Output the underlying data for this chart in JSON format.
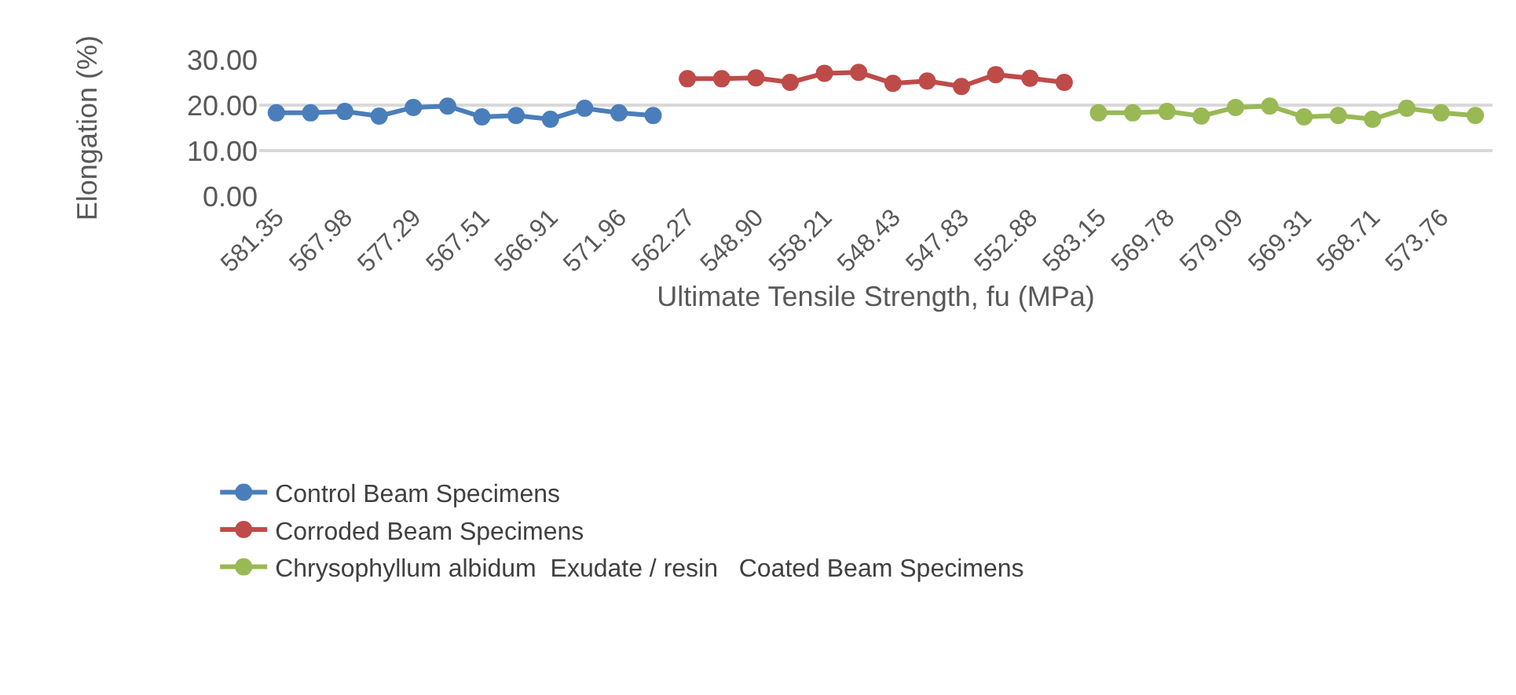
{
  "chart_data": {
    "type": "line",
    "xlabel": "Ultimate Tensile Strength, fu (MPa)",
    "ylabel": "Elongation (%)",
    "categories": [
      "581.35",
      null,
      "567.98",
      null,
      "577.29",
      null,
      "567.51",
      null,
      "566.91",
      null,
      "571.96",
      null,
      "562.27",
      null,
      "548.90",
      null,
      "558.21",
      null,
      "548.43",
      null,
      "547.83",
      null,
      "552.88",
      null,
      "583.15",
      null,
      "569.78",
      null,
      "579.09",
      null,
      "569.31",
      null,
      "568.71",
      null,
      "573.76",
      null
    ],
    "series": [
      {
        "name": "Control Beam Specimens",
        "color": "#4a7ebb",
        "values": [
          18.3,
          18.3,
          18.6,
          17.6,
          19.5,
          19.8,
          17.4,
          17.7,
          16.9,
          19.3,
          18.3,
          17.7,
          null,
          null,
          null,
          null,
          null,
          null,
          null,
          null,
          null,
          null,
          null,
          null,
          null,
          null,
          null,
          null,
          null,
          null,
          null,
          null,
          null,
          null,
          null,
          null
        ]
      },
      {
        "name": "Corroded Beam Specimens",
        "color": "#be4b48",
        "values": [
          null,
          null,
          null,
          null,
          null,
          null,
          null,
          null,
          null,
          null,
          null,
          null,
          25.8,
          25.8,
          26.0,
          25.0,
          27.0,
          27.2,
          24.8,
          25.3,
          24.1,
          26.7,
          25.9,
          25.0,
          null,
          null,
          null,
          null,
          null,
          null,
          null,
          null,
          null,
          null,
          null,
          null
        ]
      },
      {
        "name": "Chrysophyllum albidum  Exudate / resin   Coated Beam Specimens",
        "color": "#98b954",
        "values": [
          null,
          null,
          null,
          null,
          null,
          null,
          null,
          null,
          null,
          null,
          null,
          null,
          null,
          null,
          null,
          null,
          null,
          null,
          null,
          null,
          null,
          null,
          null,
          null,
          18.3,
          18.3,
          18.6,
          17.6,
          19.5,
          19.8,
          17.4,
          17.7,
          16.9,
          19.3,
          18.3,
          17.7
        ]
      }
    ],
    "ylim": [
      0,
      30
    ],
    "yticks": [
      {
        "value": 0,
        "label": "0.00"
      },
      {
        "value": 10,
        "label": "10.00"
      },
      {
        "value": 20,
        "label": "20.00"
      },
      {
        "value": 30,
        "label": "30.00"
      }
    ],
    "grid": "y",
    "legend": "bottom",
    "marker": "circle",
    "line_style": "solid"
  }
}
